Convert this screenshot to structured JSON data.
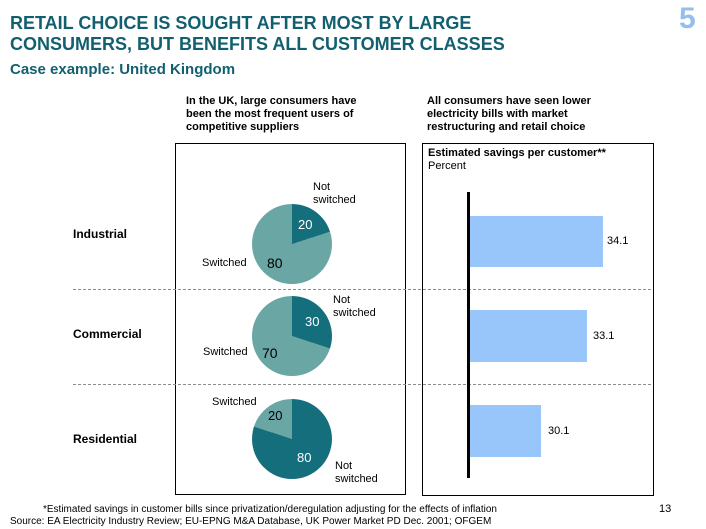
{
  "slide": {
    "page_number_top": "5",
    "page_number_bottom": "13",
    "title_lines": [
      "RETAIL CHOICE IS SOUGHT AFTER MOST BY LARGE",
      "CONSUMERS, BUT BENEFITS ALL CUSTOMER CLASSES"
    ],
    "subtitle": "Case example: United Kingdom",
    "footnote": "*Estimated savings in customer bills since privatization/deregulation adjusting for the effects of inflation",
    "source": "Source: EA Electricity Industry Review; EU-EPNG M&A Database, UK Power Market PD Dec. 2001; OFGEM"
  },
  "pie_panel": {
    "heading": "In the UK, large consumers have been the most frequent users of competitive suppliers"
  },
  "bar_panel": {
    "heading": "All consumers have seen lower electricity bills with market restructuring and retail choice",
    "box_title": "Estimated savings per customer**",
    "box_unit": "Percent"
  },
  "rows": [
    {
      "label": "Industrial",
      "pie": {
        "not_switched": 20,
        "switched": 80
      },
      "not_switched_label": "Not switched",
      "switched_label": "Switched",
      "bar_value": "34.1"
    },
    {
      "label": "Commercial",
      "pie": {
        "not_switched": 30,
        "switched": 70
      },
      "not_switched_label": "Not switched",
      "switched_label": "Switched",
      "bar_value": "33.1"
    },
    {
      "label": "Residential",
      "pie": {
        "not_switched": 80,
        "switched": 20
      },
      "not_switched_label": "Not switched",
      "switched_label": "Switched",
      "bar_value": "30.1"
    }
  ],
  "colors": {
    "title_teal": "#125f70",
    "page_num_blue": "#96beeb",
    "bar_blue": "#99c6fa",
    "pie_dark": "#156e7c",
    "pie_light": "#6aa6a4",
    "dash_gray": "#8c8c8c"
  },
  "chart_data": [
    {
      "type": "pie",
      "title": "In the UK, large consumers have been the most frequent users of competitive suppliers",
      "charts": [
        {
          "name": "Industrial",
          "labels": [
            "Not switched",
            "Switched"
          ],
          "values": [
            20,
            80
          ]
        },
        {
          "name": "Commercial",
          "labels": [
            "Not switched",
            "Switched"
          ],
          "values": [
            30,
            70
          ]
        },
        {
          "name": "Residential",
          "labels": [
            "Not switched",
            "Switched"
          ],
          "values": [
            80,
            20
          ]
        }
      ],
      "legend_position": "around-slices",
      "dark_slice": "Not switched"
    },
    {
      "type": "bar",
      "orientation": "horizontal",
      "title": "Estimated savings per customer**",
      "ylabel": "Percent",
      "categories": [
        "Industrial",
        "Commercial",
        "Residential"
      ],
      "values": [
        34.1,
        33.1,
        30.1
      ],
      "xlim": [
        0,
        40
      ],
      "grid": false
    }
  ]
}
